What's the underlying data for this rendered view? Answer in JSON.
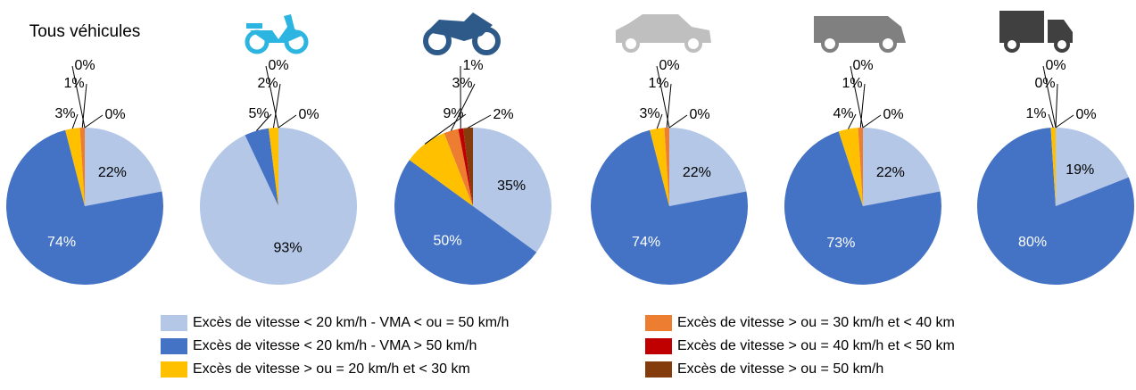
{
  "chart_data": {
    "type": "pie",
    "categories": [
      "Excès de vitesse < 20 km/h  - VMA < ou = 50 km/h",
      "Excès de vitesse < 20 km/h  - VMA > 50 km/h",
      "Excès de vitesse > ou = 20 km/h et < 30 km",
      "Excès de vitesse > ou = 30 km/h et < 40 km",
      "Excès de vitesse > ou = 40 km/h et < 50 km",
      "Excès de vitesse > ou = 50 km/h"
    ],
    "colors": [
      "#b4c7e7",
      "#4472c4",
      "#ffc000",
      "#ed7d31",
      "#c00000",
      "#843c0c"
    ],
    "pies": [
      {
        "title": "Tous véhicules",
        "values": [
          22,
          74,
          3,
          1,
          0,
          0
        ],
        "value_labels": [
          "22%",
          "74%",
          "3%",
          "1%",
          "0%",
          "0%"
        ]
      },
      {
        "values": [
          93,
          5,
          2,
          0,
          0,
          null
        ],
        "value_labels": [
          "93%",
          "5%",
          "2%",
          "0%",
          "0%",
          null
        ]
      },
      {
        "values": [
          35,
          50,
          9,
          3,
          1,
          2
        ],
        "value_labels": [
          "35%",
          "50%",
          "9%",
          "3%",
          "1%",
          "2%"
        ]
      },
      {
        "values": [
          22,
          74,
          3,
          1,
          0,
          0
        ],
        "value_labels": [
          "22%",
          "74%",
          "3%",
          "1%",
          "0%",
          "0%"
        ]
      },
      {
        "values": [
          22,
          73,
          4,
          1,
          0,
          0
        ],
        "value_labels": [
          "22%",
          "73%",
          "4%",
          "1%",
          "0%",
          "0%"
        ]
      },
      {
        "values": [
          19,
          80,
          1,
          0,
          0,
          0
        ],
        "value_labels": [
          "19%",
          "80%",
          "1%",
          "0%",
          "0%",
          "0%"
        ]
      }
    ]
  }
}
